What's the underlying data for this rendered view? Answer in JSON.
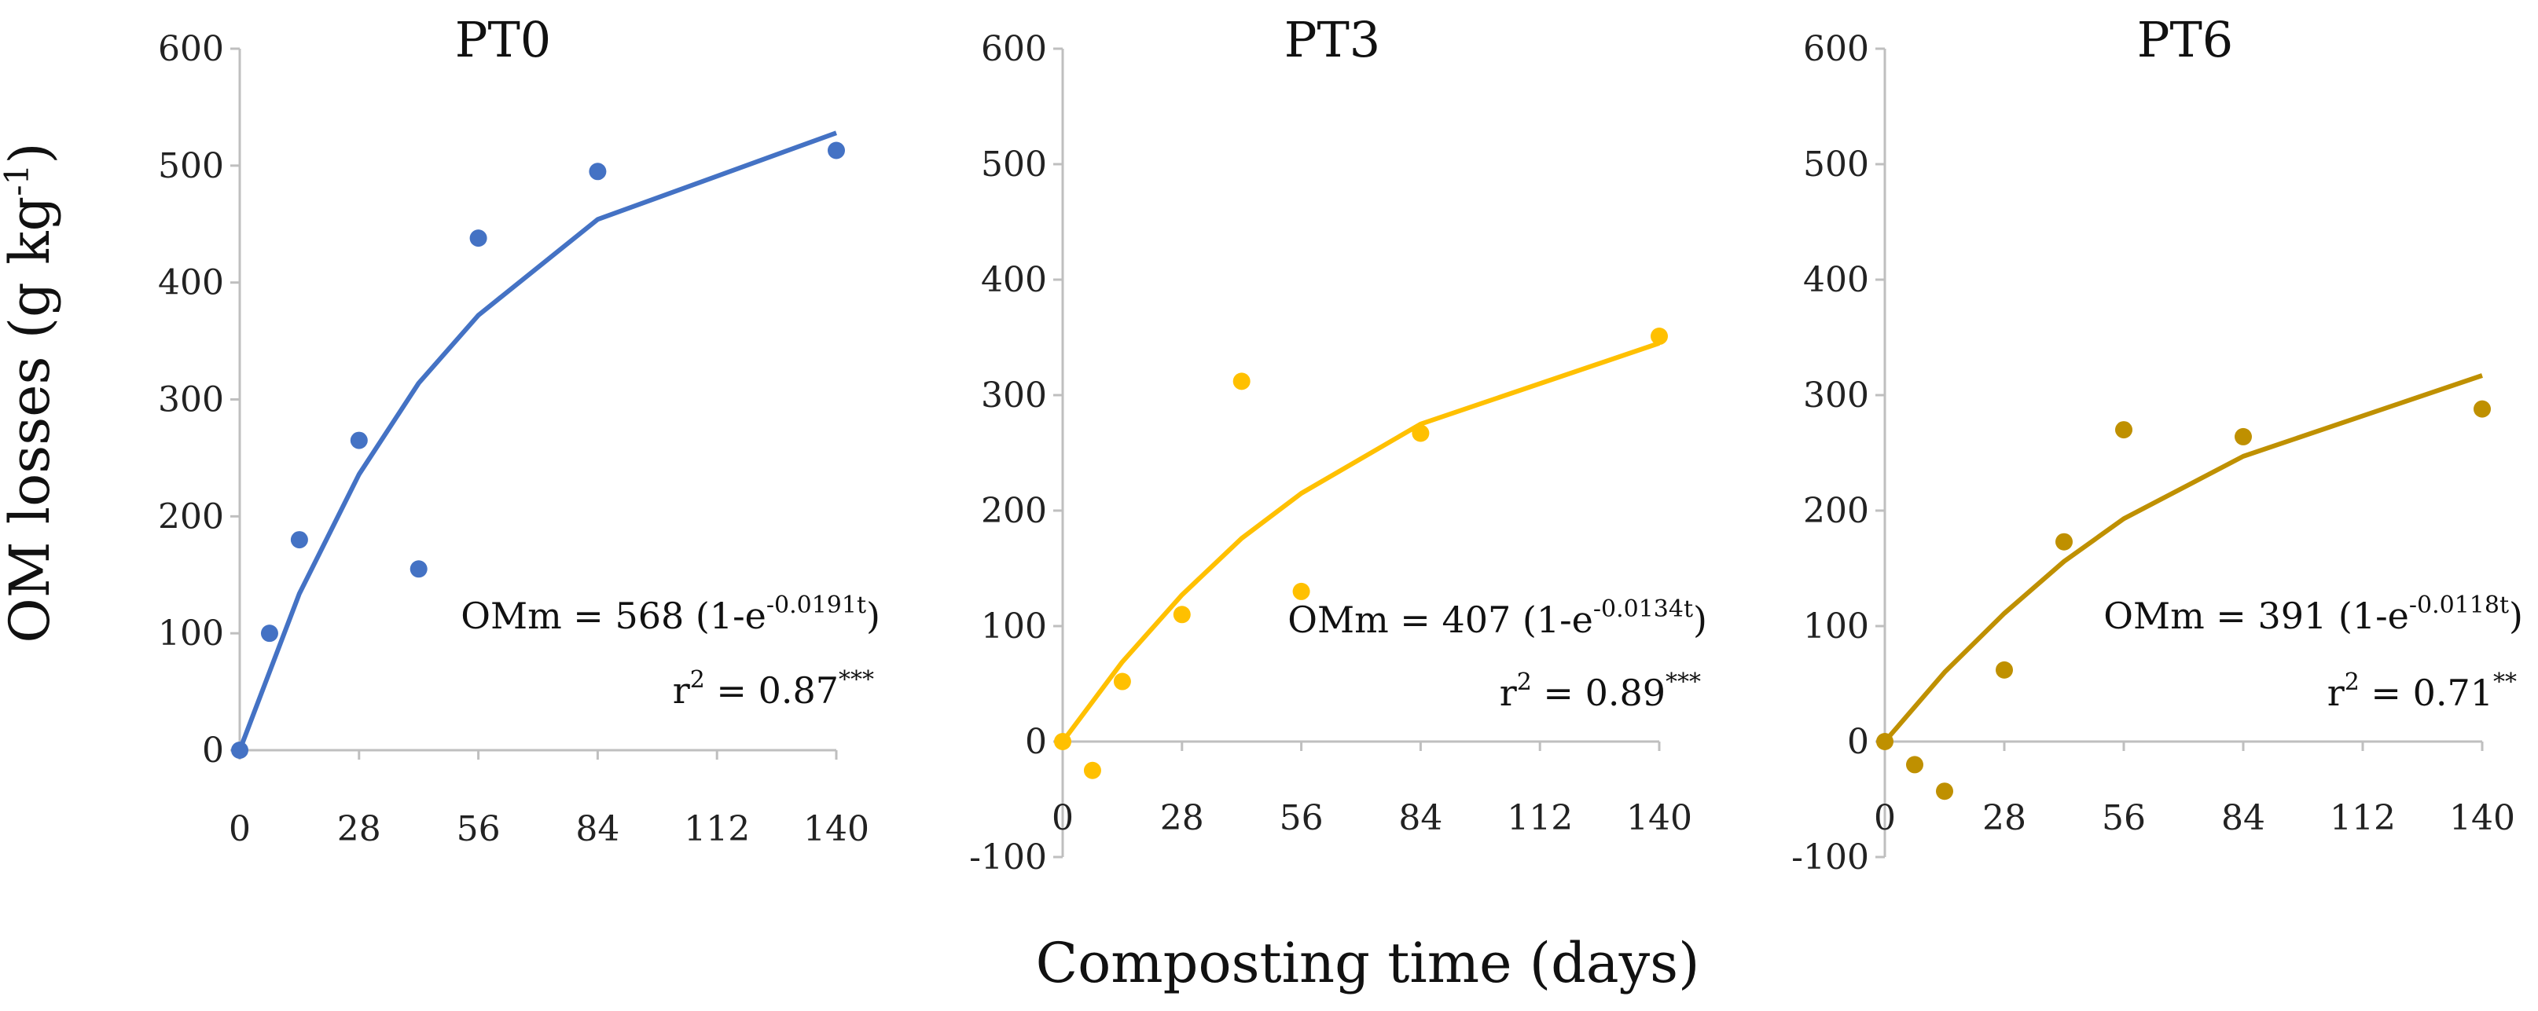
{
  "figure": {
    "xlabel": "Composting time (days)",
    "ylabel": "OM losses (g kg",
    "ylabel_sup": "-1",
    "ylabel_end": ")"
  },
  "chart_data": [
    {
      "type": "scatter",
      "title": "PT0",
      "color": "#4472c4",
      "x_ticks": [
        0,
        28,
        56,
        84,
        112,
        140
      ],
      "y_ticks": [
        0,
        100,
        200,
        300,
        400,
        500,
        600
      ],
      "xlim": [
        0,
        140
      ],
      "ylim": [
        0,
        600
      ],
      "points": {
        "x": [
          0,
          7,
          14,
          28,
          42,
          56,
          84,
          140
        ],
        "y": [
          0,
          100,
          180,
          265,
          155,
          438,
          495,
          513
        ]
      },
      "fit": {
        "x": [
          0,
          14,
          28,
          42,
          56,
          84,
          140
        ],
        "y": [
          0,
          134,
          236,
          314,
          372,
          454,
          528
        ]
      },
      "equation": {
        "prefix": "OMm = 568 (1-e",
        "exponent": "-0.0191t",
        "suffix": ")",
        "r2_prefix": "r",
        "r2_sup": "2",
        "r2_value": " = 0.87",
        "significance": "***"
      }
    },
    {
      "type": "scatter",
      "title": "PT3",
      "color": "#ffc000",
      "x_ticks": [
        0,
        28,
        56,
        84,
        112,
        140
      ],
      "y_ticks": [
        -100,
        0,
        100,
        200,
        300,
        400,
        500,
        600
      ],
      "xlim": [
        0,
        140
      ],
      "ylim": [
        -100,
        600
      ],
      "points": {
        "x": [
          0,
          7,
          14,
          28,
          42,
          56,
          84,
          140
        ],
        "y": [
          0,
          -25,
          52,
          110,
          312,
          130,
          267,
          351
        ]
      },
      "fit": {
        "x": [
          0,
          14,
          28,
          42,
          56,
          84,
          140
        ],
        "y": [
          0,
          69,
          127,
          176,
          215,
          275,
          345
        ]
      },
      "equation": {
        "prefix": "OMm = 407 (1-e",
        "exponent": "-0.0134t",
        "suffix": ")",
        "r2_prefix": "r",
        "r2_sup": "2",
        "r2_value": " = 0.89",
        "significance": "***"
      }
    },
    {
      "type": "scatter",
      "title": "PT6",
      "color": "#bf9000",
      "x_ticks": [
        0,
        28,
        56,
        84,
        112,
        140
      ],
      "y_ticks": [
        -100,
        0,
        100,
        200,
        300,
        400,
        500,
        600
      ],
      "xlim": [
        0,
        140
      ],
      "ylim": [
        -100,
        600
      ],
      "points": {
        "x": [
          0,
          7,
          14,
          28,
          42,
          56,
          84,
          140
        ],
        "y": [
          0,
          -20,
          -43,
          62,
          173,
          270,
          264,
          288
        ]
      },
      "fit": {
        "x": [
          0,
          14,
          28,
          42,
          56,
          84,
          140
        ],
        "y": [
          0,
          60,
          111,
          156,
          193,
          247,
          317
        ]
      },
      "equation": {
        "prefix": "OMm = 391 (1-e",
        "exponent": "-0.0118t",
        "suffix": ")",
        "r2_prefix": "r",
        "r2_sup": "2",
        "r2_value": " = 0.71",
        "significance": "**"
      }
    }
  ]
}
